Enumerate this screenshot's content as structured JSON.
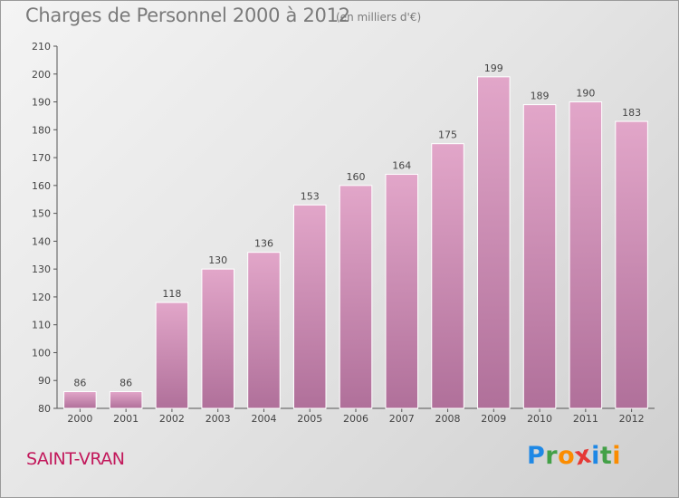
{
  "header": {
    "title": "Charges de Personnel 2000 à 2012",
    "subtitle": "(en milliers d'€)"
  },
  "footer": {
    "commune": "SAINT-VRAN",
    "logo_letters": [
      "P",
      "r",
      "o",
      "x",
      "i",
      "t",
      "i"
    ]
  },
  "colors": {
    "bar_top": "#e2a6c9",
    "bar_bottom": "#b0709a",
    "commune": "#c2185b",
    "logo": [
      "#1e88e5",
      "#43a047",
      "#fb8c00",
      "#e53935",
      "#1e88e5",
      "#43a047",
      "#fb8c00"
    ]
  },
  "chart_data": {
    "type": "bar",
    "title": "Charges de Personnel 2000 à 2012",
    "subtitle": "(en milliers d'€)",
    "categories": [
      "2000",
      "2001",
      "2002",
      "2003",
      "2004",
      "2005",
      "2006",
      "2007",
      "2008",
      "2009",
      "2010",
      "2011",
      "2012"
    ],
    "values": [
      86,
      86,
      118,
      130,
      136,
      153,
      160,
      164,
      175,
      199,
      189,
      190,
      183
    ],
    "ylim": [
      80,
      210
    ],
    "yticks": [
      80,
      90,
      100,
      110,
      120,
      130,
      140,
      150,
      160,
      170,
      180,
      190,
      200,
      210
    ],
    "grid": false,
    "data_labels": true
  }
}
